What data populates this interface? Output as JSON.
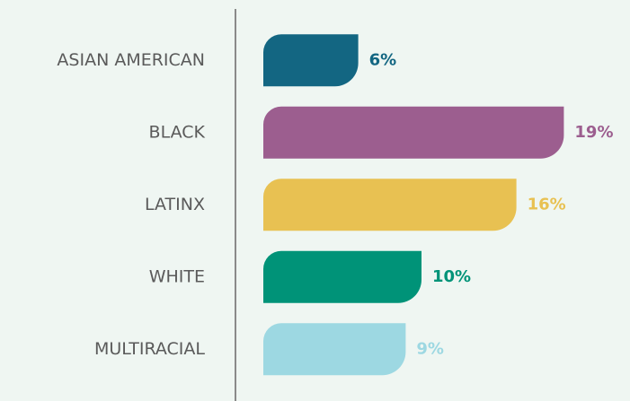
{
  "chart_data": {
    "type": "bar",
    "orientation": "horizontal",
    "categories": [
      "ASIAN AMERICAN",
      "BLACK",
      "LATINX",
      "WHITE",
      "MULTIRACIAL"
    ],
    "values": [
      6,
      19,
      16,
      10,
      9
    ],
    "value_labels": [
      "6%",
      "19%",
      "16%",
      "10%",
      "9%"
    ],
    "colors": [
      "#136682",
      "#9c5e8f",
      "#e8c152",
      "#009378",
      "#9dd8e2"
    ],
    "xlim": [
      0,
      20
    ]
  }
}
